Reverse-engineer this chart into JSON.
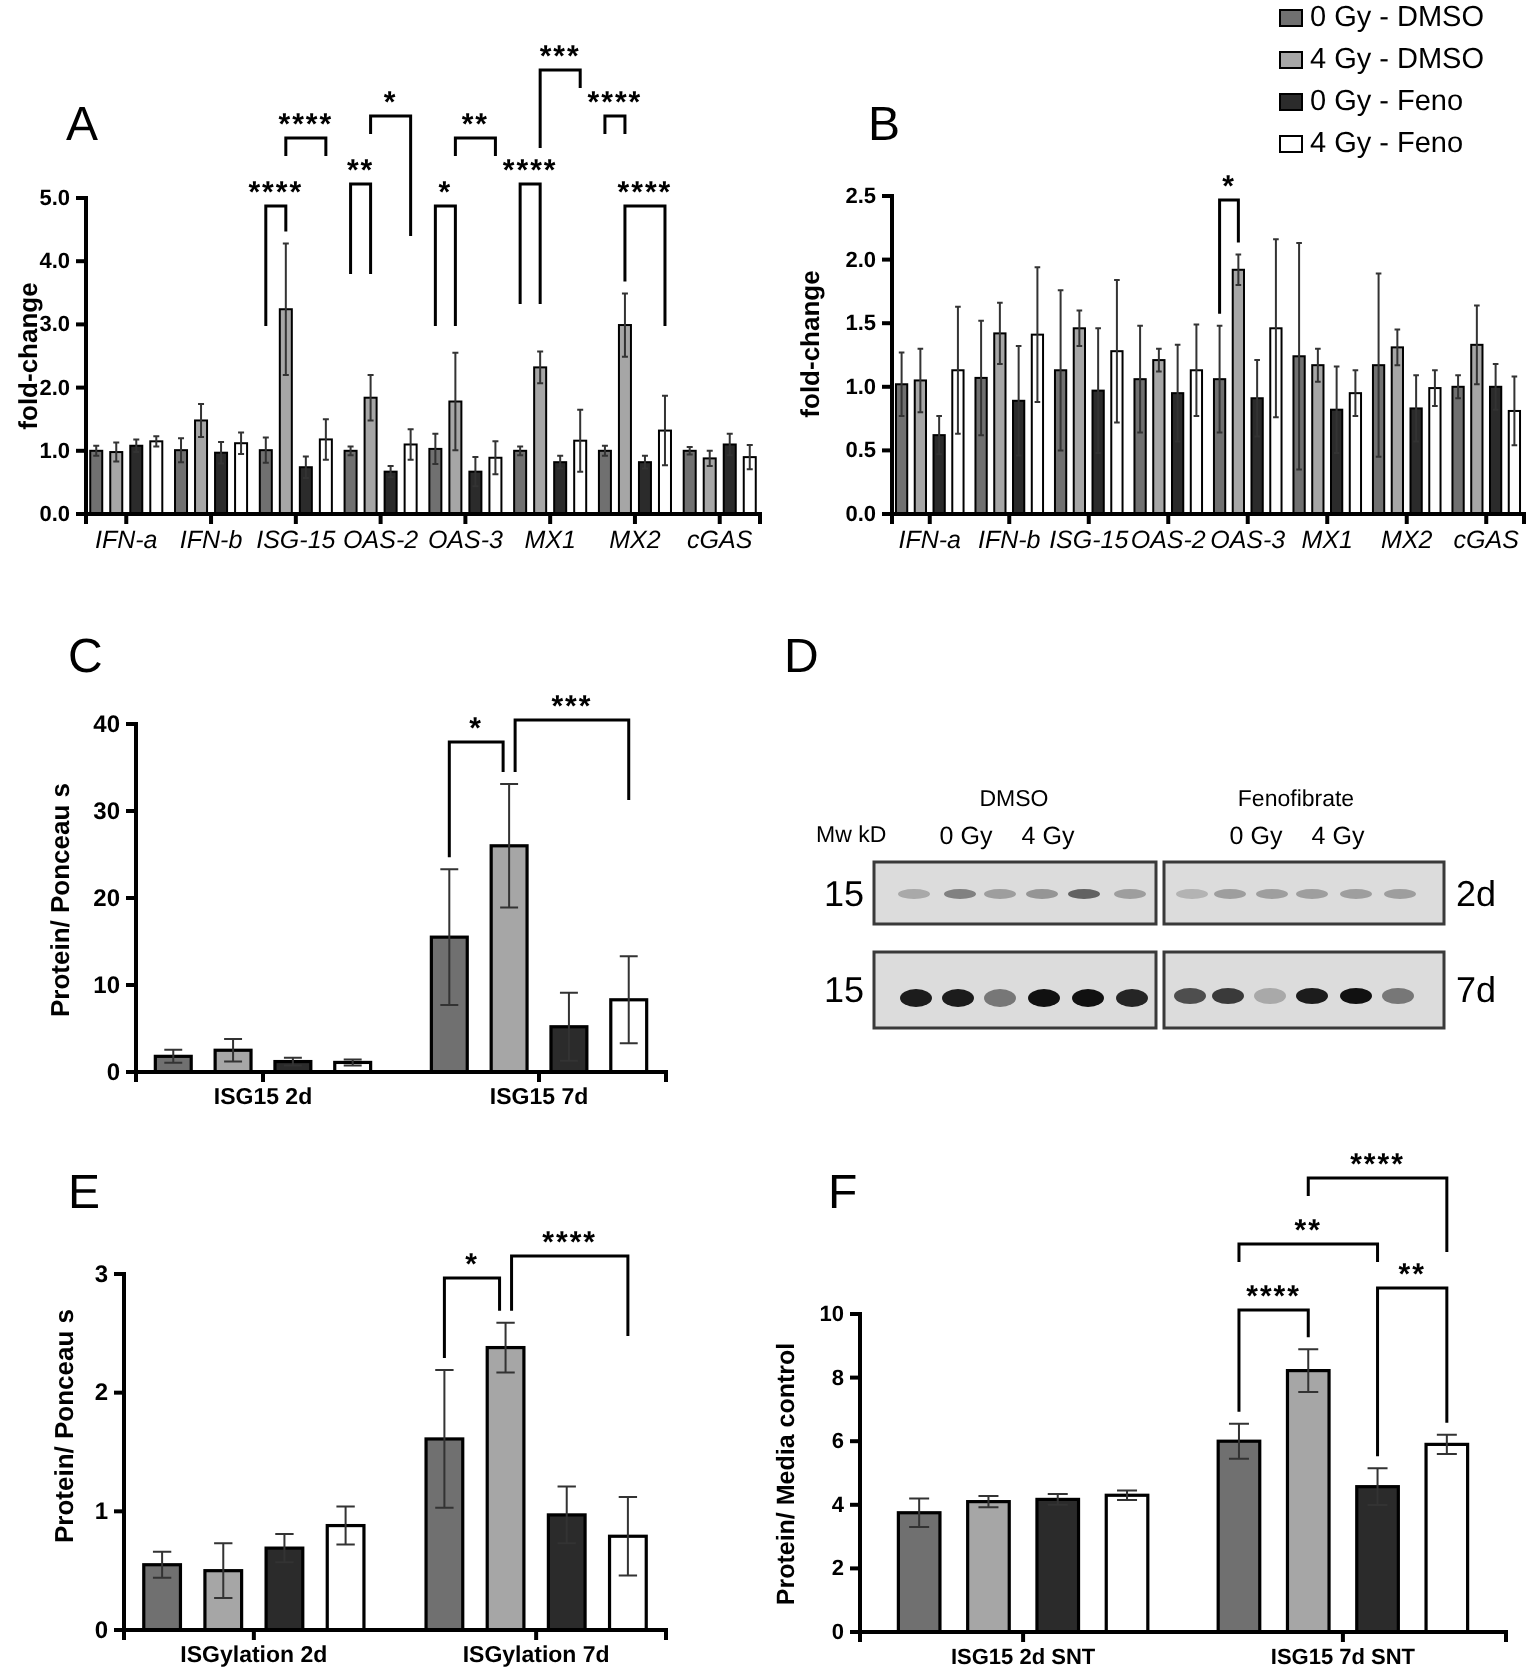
{
  "chart_data": [
    {
      "type": "bar",
      "title": "A",
      "ylabel": "fold-change",
      "categories": [
        "IFN-a",
        "IFN-b",
        "ISG-15",
        "OAS-2",
        "OAS-3",
        "MX1",
        "MX2",
        "cGAS"
      ],
      "series": [
        {
          "color": "#707070",
          "values": [
            1.0,
            1.01,
            1.01,
            1.0,
            1.03,
            1.0,
            1.0,
            1.0
          ],
          "errors": [
            0.08,
            0.19,
            0.2,
            0.07,
            0.24,
            0.07,
            0.08,
            0.06
          ]
        },
        {
          "color": "#a6a6a6",
          "values": [
            0.98,
            1.48,
            3.24,
            1.84,
            1.78,
            2.32,
            2.99,
            0.88
          ],
          "errors": [
            0.15,
            0.26,
            1.04,
            0.36,
            0.77,
            0.25,
            0.5,
            0.12
          ]
        },
        {
          "color": "#2b2b2b",
          "values": [
            1.08,
            0.97,
            0.74,
            0.67,
            0.67,
            0.82,
            0.82,
            1.1
          ],
          "errors": [
            0.1,
            0.17,
            0.17,
            0.09,
            0.23,
            0.1,
            0.1,
            0.17
          ]
        },
        {
          "color": "#ffffff",
          "values": [
            1.15,
            1.12,
            1.18,
            1.1,
            0.89,
            1.16,
            1.32,
            0.9
          ],
          "errors": [
            0.08,
            0.17,
            0.32,
            0.24,
            0.26,
            0.49,
            0.55,
            0.19
          ]
        }
      ],
      "ylim": [
        0,
        5
      ],
      "yticks": [
        {
          "value": 0,
          "label": "0.0"
        },
        {
          "value": 1,
          "label": "1.0"
        },
        {
          "value": 2,
          "label": "2.0"
        },
        {
          "value": 3,
          "label": "3.0"
        },
        {
          "value": 4,
          "label": "4.0"
        },
        {
          "value": 5,
          "label": "5.0"
        }
      ],
      "annotations": [
        "***",
        "****",
        "*",
        "**",
        "****",
        "****",
        "**",
        "*",
        "****",
        "****"
      ]
    },
    {
      "type": "bar",
      "title": "B",
      "ylabel": "fold-change",
      "categories": [
        "IFN-a",
        "IFN-b",
        "ISG-15",
        "OAS-2",
        "OAS-3",
        "MX1",
        "MX2",
        "cGAS"
      ],
      "series": [
        {
          "name": "0 Gy - DMSO",
          "color": "#707070",
          "values": [
            1.02,
            1.07,
            1.13,
            1.06,
            1.06,
            1.24,
            1.17,
            1.0
          ],
          "errors": [
            0.25,
            0.45,
            0.63,
            0.42,
            0.42,
            0.89,
            0.72,
            0.09
          ]
        },
        {
          "name": "4 Gy - DMSO",
          "color": "#a6a6a6",
          "values": [
            1.05,
            1.42,
            1.46,
            1.21,
            1.92,
            1.17,
            1.31,
            1.33
          ],
          "errors": [
            0.25,
            0.24,
            0.14,
            0.09,
            0.12,
            0.13,
            0.14,
            0.31
          ]
        },
        {
          "name": "0 Gy - Feno",
          "color": "#2b2b2b",
          "values": [
            0.62,
            0.89,
            0.97,
            0.95,
            0.91,
            0.82,
            0.83,
            1.0
          ],
          "errors": [
            0.15,
            0.43,
            0.49,
            0.38,
            0.3,
            0.34,
            0.26,
            0.18
          ]
        },
        {
          "name": "4 Gy - Feno",
          "color": "#ffffff",
          "values": [
            1.13,
            1.41,
            1.28,
            1.13,
            1.46,
            0.95,
            0.99,
            0.81
          ],
          "errors": [
            0.5,
            0.53,
            0.56,
            0.36,
            0.7,
            0.18,
            0.14,
            0.27
          ]
        }
      ],
      "ylim": [
        0,
        2.5
      ],
      "yticks": [
        {
          "value": 0,
          "label": "0.0"
        },
        0.5,
        {
          "value": 1,
          "label": "1.0"
        },
        1.5,
        {
          "value": 2,
          "label": "2.0"
        },
        2.5
      ],
      "legend": "top right",
      "annotations": [
        "*"
      ]
    },
    {
      "type": "bar",
      "title": "C",
      "ylabel": "Protein/ Ponceau s",
      "categories": [
        "ISG15 2d",
        "ISG15 7d"
      ],
      "series": [
        {
          "color": "#707070",
          "values": [
            1.8,
            15.5
          ],
          "errors": [
            0.75,
            7.8
          ]
        },
        {
          "color": "#a6a6a6",
          "values": [
            2.5,
            26.0
          ],
          "errors": [
            1.3,
            7.1
          ]
        },
        {
          "color": "#2b2b2b",
          "values": [
            1.2,
            5.2
          ],
          "errors": [
            0.45,
            3.9
          ]
        },
        {
          "color": "#ffffff",
          "values": [
            1.1,
            8.3
          ],
          "errors": [
            0.35,
            5.0
          ]
        }
      ],
      "ylim": [
        0,
        40
      ],
      "yticks": [
        0,
        10,
        20,
        30,
        40
      ],
      "annotations": [
        "*",
        "***"
      ]
    },
    {
      "type": "other",
      "title": "D",
      "annotations": [
        "DMSO",
        "Fenofibrate",
        "Mw kD",
        "0 Gy",
        "4 Gy",
        "0 Gy",
        "4 Gy",
        "15",
        "15",
        "2d",
        "7d"
      ]
    },
    {
      "type": "bar",
      "title": "E",
      "ylabel": "Protein/ Ponceau s",
      "categories": [
        "ISGylation 2d",
        "ISGylation 7d"
      ],
      "series": [
        {
          "color": "#707070",
          "values": [
            0.55,
            1.61
          ],
          "errors": [
            0.11,
            0.58
          ]
        },
        {
          "color": "#a6a6a6",
          "values": [
            0.5,
            2.38
          ],
          "errors": [
            0.23,
            0.21
          ]
        },
        {
          "color": "#2b2b2b",
          "values": [
            0.69,
            0.97
          ],
          "errors": [
            0.12,
            0.24
          ]
        },
        {
          "color": "#ffffff",
          "values": [
            0.88,
            0.79
          ],
          "errors": [
            0.16,
            0.33
          ]
        }
      ],
      "ylim": [
        0,
        3
      ],
      "yticks": [
        0,
        1,
        2,
        3
      ],
      "annotations": [
        "*",
        "****"
      ]
    },
    {
      "type": "bar",
      "title": "F",
      "ylabel": "Protein/ Media control",
      "categories": [
        "ISG15 2d SNT",
        "ISG15 7d SNT"
      ],
      "series": [
        {
          "color": "#707070",
          "values": [
            3.75,
            6.0
          ],
          "errors": [
            0.45,
            0.55
          ]
        },
        {
          "color": "#a6a6a6",
          "values": [
            4.1,
            8.22
          ],
          "errors": [
            0.18,
            0.67
          ]
        },
        {
          "color": "#2b2b2b",
          "values": [
            4.17,
            4.57
          ],
          "errors": [
            0.17,
            0.58
          ]
        },
        {
          "color": "#ffffff",
          "values": [
            4.3,
            5.9
          ],
          "errors": [
            0.15,
            0.3
          ]
        }
      ],
      "ylim": [
        0,
        10
      ],
      "yticks": [
        0,
        2,
        4,
        6,
        8,
        10
      ],
      "annotations": [
        "****",
        "**",
        "****",
        "**"
      ]
    }
  ]
}
